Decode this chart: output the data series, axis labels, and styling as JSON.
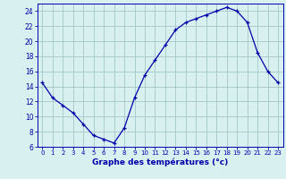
{
  "hours": [
    0,
    1,
    2,
    3,
    4,
    5,
    6,
    7,
    8,
    9,
    10,
    11,
    12,
    13,
    14,
    15,
    16,
    17,
    18,
    19,
    20,
    21,
    22,
    23
  ],
  "temps": [
    14.5,
    12.5,
    11.5,
    10.5,
    9.0,
    7.5,
    7.0,
    6.5,
    8.5,
    12.5,
    15.5,
    17.5,
    19.5,
    21.5,
    22.5,
    23.0,
    23.5,
    24.0,
    24.5,
    24.0,
    22.5,
    18.5,
    16.0,
    14.5
  ],
  "line_color": "#0000aa",
  "bg_color": "#d8f0f0",
  "grid_color": "#aacccc",
  "xlabel": "Graphe des températures (°c)",
  "xlabel_color": "#0000aa",
  "tick_color": "#0000aa",
  "ylim": [
    6,
    25
  ],
  "yticks": [
    6,
    8,
    10,
    12,
    14,
    16,
    18,
    20,
    22,
    24
  ],
  "xlim": [
    -0.5,
    23.5
  ],
  "xticks": [
    0,
    1,
    2,
    3,
    4,
    5,
    6,
    7,
    8,
    9,
    10,
    11,
    12,
    13,
    14,
    15,
    16,
    17,
    18,
    19,
    20,
    21,
    22,
    23
  ]
}
